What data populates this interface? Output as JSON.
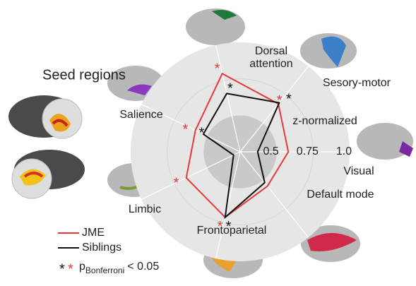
{
  "chart_data": {
    "type": "radar",
    "title": "Seed regions",
    "categories": [
      "Visual",
      "Sesory-motor",
      "Dorsal attention",
      "Salience",
      "Limbic",
      "Frontoparietal",
      "Default mode"
    ],
    "series": [
      {
        "name": "JME",
        "color": "#e8383d",
        "values": [
          0.58,
          0.67,
          0.8,
          0.59,
          0.66,
          0.71,
          0.55
        ],
        "significant": [
          false,
          true,
          true,
          true,
          true,
          true,
          false
        ]
      },
      {
        "name": "Siblings",
        "color": "#111111",
        "values": [
          0.37,
          0.68,
          0.66,
          0.53,
          0.3,
          0.71,
          0.52
        ],
        "significant": [
          false,
          true,
          true,
          true,
          false,
          true,
          false
        ]
      }
    ],
    "rlim": [
      0.25,
      1.0
    ],
    "rticks": [
      0.5,
      0.75,
      {
        "value": 1,
        "label": "1.0"
      }
    ],
    "r_axis_label": "z-normalized",
    "significance_label": {
      "base": "p",
      "subscript": "Bonferroni",
      "suffix": "< 0.05"
    }
  }
}
